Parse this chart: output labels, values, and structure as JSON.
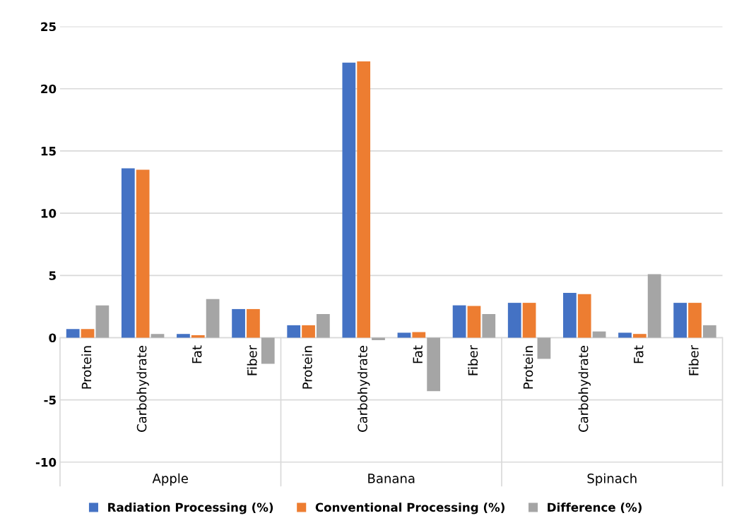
{
  "chart_data": {
    "type": "bar",
    "categories": [
      "Protein",
      "Carbohydrate",
      "Fat",
      "Fiber",
      "Protein",
      "Carbohydrate",
      "Fat",
      "Fiber",
      "Protein",
      "Carbohydrate",
      "Fat",
      "Fiber"
    ],
    "annotations": [
      "Apple",
      "Banana",
      "Spinach"
    ],
    "series": [
      {
        "name": "Radiation Processing (%)",
        "color": "#4472c4",
        "values": [
          0.7,
          13.6,
          0.3,
          2.3,
          1.0,
          22.1,
          0.4,
          2.6,
          2.8,
          3.6,
          0.4,
          2.8
        ]
      },
      {
        "name": "Conventional Processing (%)",
        "color": "#ed7d31",
        "values": [
          0.7,
          13.5,
          0.2,
          2.3,
          1.0,
          22.2,
          0.45,
          2.55,
          2.8,
          3.5,
          0.3,
          2.8
        ]
      },
      {
        "name": "Difference (%)",
        "color": "#a5a5a5",
        "values": [
          2.6,
          0.3,
          3.1,
          -2.1,
          1.9,
          -0.2,
          -4.3,
          1.9,
          -1.7,
          0.5,
          5.1,
          1.0
        ]
      }
    ],
    "ylim": [
      -10,
      25
    ],
    "yticks": [
      -10,
      -5,
      0,
      5,
      10,
      15,
      20,
      25
    ],
    "grid": "y",
    "legend": "bottom"
  }
}
